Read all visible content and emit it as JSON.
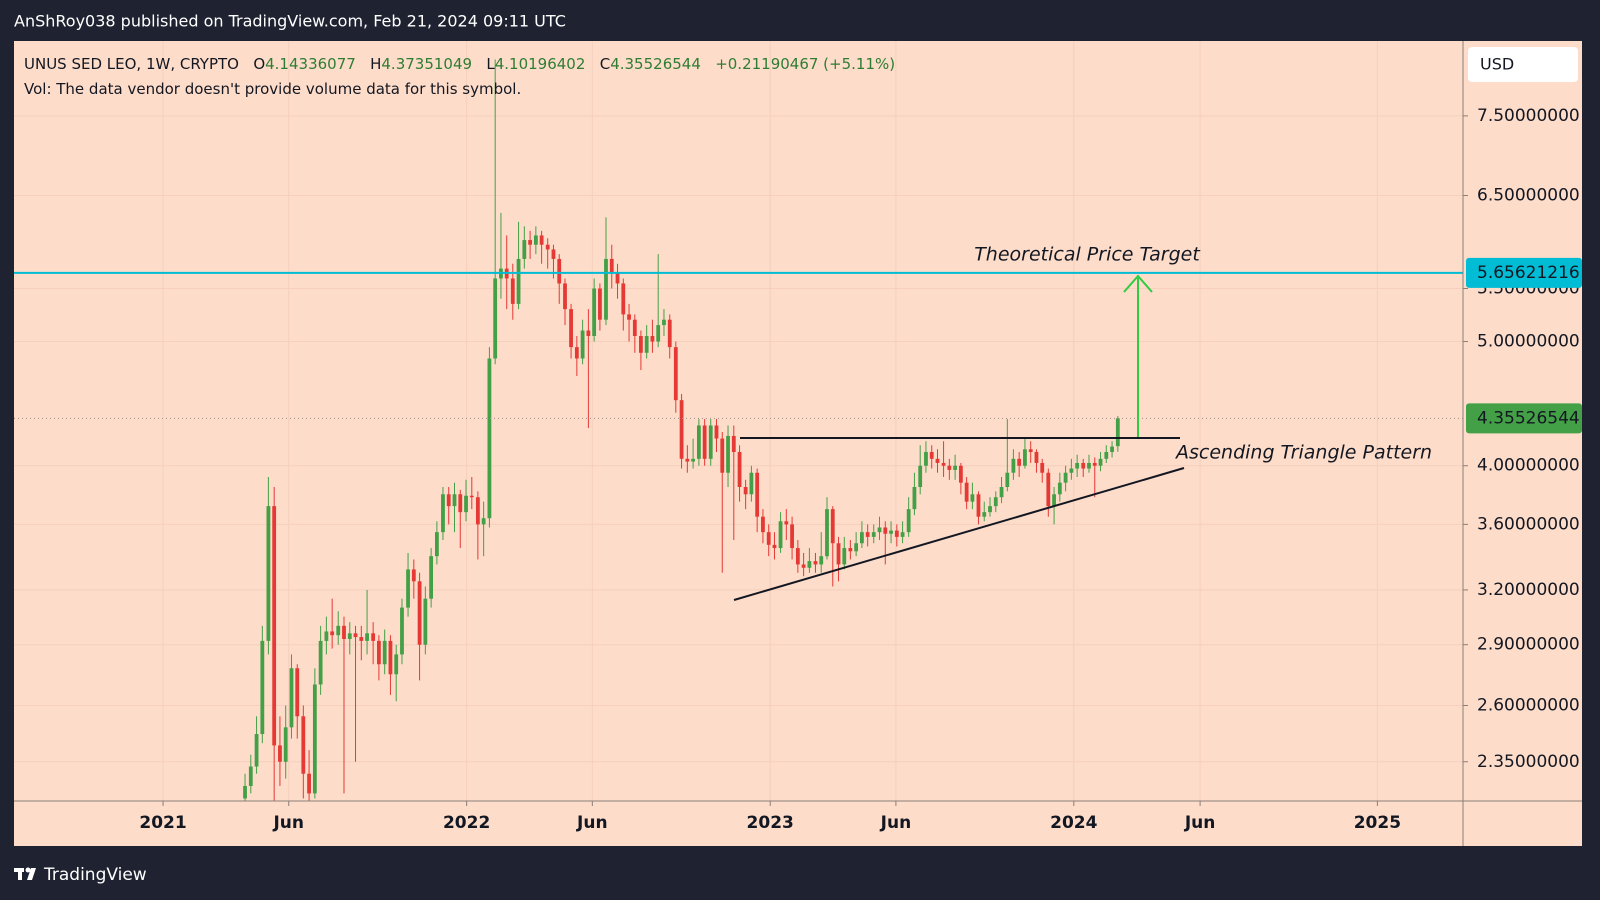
{
  "header": {
    "title": "AnShRoy038 published on TradingView.com, Feb 21, 2024 09:11 UTC"
  },
  "footer": {
    "brand": "TradingView"
  },
  "legend": {
    "symbol": "UNUS SED LEO, 1W, CRYPTO",
    "open_label": "O",
    "open": 4.14336077,
    "high_label": "H",
    "high": 4.37351049,
    "low_label": "L",
    "low": 4.10196402,
    "close_label": "C",
    "close": 4.35526544,
    "change": "+0.21190467 (+5.11%)",
    "volume_note": "Vol: The data vendor doesn't provide volume data for this symbol."
  },
  "chart_data": {
    "type": "candlestick",
    "currency": "USD",
    "up_color": "#43a047",
    "down_color": "#e53935",
    "log_scale": true,
    "grid": true,
    "xlim": [
      2020.509,
      2025.282
    ],
    "ylim": [
      2.19,
      8.58
    ],
    "xticks": [
      {
        "value": 2021,
        "label": "2021"
      },
      {
        "value": 2021.414,
        "label": "Jun"
      },
      {
        "value": 2022,
        "label": "2022"
      },
      {
        "value": 2022.414,
        "label": "Jun"
      },
      {
        "value": 2023,
        "label": "2023"
      },
      {
        "value": 2023.414,
        "label": "Jun"
      },
      {
        "value": 2024,
        "label": "2024"
      },
      {
        "value": 2024.416,
        "label": "Jun"
      },
      {
        "value": 2025,
        "label": "2025"
      }
    ],
    "yticks": [
      {
        "value": 2.35,
        "label": "2.35000000"
      },
      {
        "value": 2.6,
        "label": "2.60000000"
      },
      {
        "value": 2.9,
        "label": "2.90000000"
      },
      {
        "value": 3.2,
        "label": "3.20000000"
      },
      {
        "value": 3.6,
        "label": "3.60000000"
      },
      {
        "value": 4.0,
        "label": "4.00000000"
      },
      {
        "value": 5.0,
        "label": "5.00000000"
      },
      {
        "value": 5.5,
        "label": "5.50000000"
      },
      {
        "value": 6.5,
        "label": "6.50000000"
      },
      {
        "value": 7.5,
        "label": "7.50000000"
      }
    ],
    "price_line": {
      "value": 5.65621216,
      "color": "#00bcd4"
    },
    "annotations": [
      "Theoretical Price Target",
      "Ascending Triangle Pattern"
    ],
    "x": [
      2021.27,
      2021.289,
      2021.308,
      2021.327,
      2021.347,
      2021.366,
      2021.385,
      2021.404,
      2021.423,
      2021.442,
      2021.462,
      2021.481,
      2021.5,
      2021.519,
      2021.538,
      2021.557,
      2021.577,
      2021.596,
      2021.615,
      2021.634,
      2021.653,
      2021.672,
      2021.692,
      2021.711,
      2021.73,
      2021.749,
      2021.768,
      2021.787,
      2021.807,
      2021.826,
      2021.845,
      2021.864,
      2021.883,
      2021.902,
      2021.922,
      2021.941,
      2021.96,
      2021.979,
      2021.998,
      2022.017,
      2022.037,
      2022.056,
      2022.075,
      2022.094,
      2022.113,
      2022.132,
      2022.152,
      2022.171,
      2022.19,
      2022.209,
      2022.228,
      2022.247,
      2022.267,
      2022.286,
      2022.305,
      2022.324,
      2022.344,
      2022.363,
      2022.382,
      2022.401,
      2022.42,
      2022.439,
      2022.459,
      2022.478,
      2022.497,
      2022.516,
      2022.535,
      2022.554,
      2022.574,
      2022.593,
      2022.612,
      2022.631,
      2022.65,
      2022.669,
      2022.689,
      2022.708,
      2022.727,
      2022.746,
      2022.765,
      2022.784,
      2022.804,
      2022.823,
      2022.842,
      2022.861,
      2022.88,
      2022.899,
      2022.919,
      2022.938,
      2022.957,
      2022.976,
      2022.995,
      2023.014,
      2023.034,
      2023.053,
      2023.072,
      2023.091,
      2023.11,
      2023.129,
      2023.149,
      2023.168,
      2023.187,
      2023.206,
      2023.225,
      2023.244,
      2023.264,
      2023.283,
      2023.302,
      2023.321,
      2023.341,
      2023.36,
      2023.379,
      2023.398,
      2023.417,
      2023.436,
      2023.456,
      2023.475,
      2023.494,
      2023.513,
      2023.532,
      2023.551,
      2023.571,
      2023.59,
      2023.609,
      2023.628,
      2023.647,
      2023.666,
      2023.686,
      2023.705,
      2023.724,
      2023.743,
      2023.762,
      2023.781,
      2023.801,
      2023.82,
      2023.839,
      2023.858,
      2023.877,
      2023.896,
      2023.916,
      2023.935,
      2023.954,
      2023.973,
      2023.992,
      2024.011,
      2024.031,
      2024.05,
      2024.069,
      2024.088,
      2024.107,
      2024.126,
      2024.145
    ],
    "open": [
      2.2,
      2.25,
      2.33,
      2.47,
      2.92,
      3.72,
      2.42,
      2.35,
      2.5,
      2.78,
      2.55,
      2.3,
      2.22,
      2.7,
      2.92,
      2.97,
      2.95,
      3.0,
      2.93,
      2.96,
      2.94,
      2.92,
      2.96,
      2.92,
      2.8,
      2.92,
      2.75,
      2.85,
      3.1,
      3.32,
      3.25,
      2.9,
      3.15,
      3.4,
      3.55,
      3.8,
      3.72,
      3.8,
      3.68,
      3.79,
      3.78,
      3.6,
      3.64,
      4.85,
      5.6,
      5.7,
      5.6,
      5.35,
      5.8,
      6.0,
      5.95,
      6.05,
      5.95,
      5.9,
      5.8,
      5.55,
      5.3,
      4.95,
      4.85,
      5.1,
      5.05,
      5.5,
      5.2,
      5.8,
      5.65,
      5.55,
      5.25,
      5.2,
      5.05,
      4.9,
      5.05,
      5.0,
      5.15,
      5.2,
      4.95,
      4.5,
      4.05,
      4.03,
      4.05,
      4.3,
      4.05,
      4.3,
      4.2,
      3.95,
      4.22,
      4.1,
      3.85,
      3.8,
      3.95,
      3.65,
      3.55,
      3.47,
      3.45,
      3.62,
      3.6,
      3.45,
      3.35,
      3.33,
      3.37,
      3.35,
      3.4,
      3.7,
      3.48,
      3.35,
      3.45,
      3.43,
      3.48,
      3.55,
      3.52,
      3.55,
      3.58,
      3.54,
      3.56,
      3.52,
      3.55,
      3.7,
      3.85,
      4.0,
      4.1,
      4.05,
      4.02,
      4.0,
      3.97,
      4.0,
      3.88,
      3.75,
      3.8,
      3.65,
      3.68,
      3.72,
      3.78,
      3.85,
      3.95,
      4.05,
      4.0,
      4.12,
      4.1,
      4.02,
      3.95,
      3.72,
      3.8,
      3.88,
      3.95,
      3.98,
      4.02,
      3.98,
      4.02,
      4.0,
      4.05,
      4.1,
      4.14336077
    ],
    "high": [
      2.3,
      2.38,
      2.55,
      3.0,
      3.92,
      3.85,
      2.55,
      2.6,
      2.85,
      2.8,
      2.6,
      2.4,
      2.78,
      3.0,
      3.05,
      3.15,
      3.08,
      3.05,
      3.02,
      3.0,
      3.0,
      3.2,
      3.02,
      2.95,
      2.98,
      2.95,
      2.9,
      3.15,
      3.42,
      3.38,
      3.3,
      3.22,
      3.45,
      3.62,
      3.85,
      3.85,
      3.88,
      3.83,
      3.9,
      3.92,
      3.82,
      3.75,
      4.95,
      8.3,
      6.3,
      6.05,
      5.75,
      6.2,
      6.15,
      6.1,
      6.15,
      6.1,
      6.02,
      5.95,
      5.85,
      5.6,
      5.35,
      5.05,
      5.2,
      5.3,
      5.6,
      5.55,
      6.25,
      5.95,
      5.75,
      5.6,
      5.35,
      5.25,
      5.1,
      5.15,
      5.2,
      5.85,
      5.3,
      5.25,
      5.0,
      4.55,
      4.15,
      4.2,
      4.35,
      4.35,
      4.35,
      4.35,
      4.25,
      4.3,
      4.3,
      4.15,
      3.9,
      4.0,
      3.98,
      3.7,
      3.6,
      3.55,
      3.68,
      3.7,
      3.65,
      3.5,
      3.42,
      3.45,
      3.42,
      3.55,
      3.78,
      3.72,
      3.52,
      3.52,
      3.5,
      3.55,
      3.62,
      3.6,
      3.6,
      3.65,
      3.62,
      3.62,
      3.6,
      3.62,
      3.78,
      3.95,
      4.15,
      4.18,
      4.15,
      4.12,
      4.18,
      4.05,
      4.08,
      4.02,
      3.92,
      3.88,
      3.82,
      3.75,
      3.78,
      3.82,
      3.92,
      4.35,
      4.12,
      4.1,
      4.2,
      4.18,
      4.12,
      4.05,
      3.98,
      3.85,
      3.95,
      4.0,
      4.05,
      4.08,
      4.05,
      4.08,
      4.06,
      4.1,
      4.15,
      4.18,
      4.37351049
    ],
    "low": [
      2.16,
      2.22,
      2.3,
      2.43,
      2.85,
      2.18,
      2.25,
      2.28,
      2.45,
      2.45,
      2.2,
      2.1,
      2.2,
      2.65,
      2.85,
      2.88,
      2.9,
      2.22,
      2.85,
      2.35,
      2.82,
      2.85,
      2.8,
      2.72,
      2.75,
      2.65,
      2.62,
      2.8,
      3.05,
      3.15,
      2.72,
      2.85,
      3.1,
      3.35,
      3.5,
      3.6,
      3.55,
      3.45,
      3.62,
      3.7,
      3.38,
      3.4,
      3.58,
      4.8,
      5.4,
      5.3,
      5.2,
      5.3,
      5.7,
      5.8,
      5.85,
      5.75,
      5.7,
      5.6,
      5.35,
      5.15,
      4.85,
      4.7,
      4.8,
      4.28,
      5.0,
      5.1,
      5.15,
      5.5,
      5.4,
      5.1,
      5.0,
      4.9,
      4.75,
      4.85,
      4.9,
      4.95,
      5.05,
      4.85,
      4.4,
      3.98,
      3.95,
      3.98,
      4.0,
      4.0,
      4.0,
      4.1,
      3.3,
      3.85,
      3.5,
      3.75,
      3.7,
      3.75,
      3.55,
      3.48,
      3.4,
      3.38,
      3.42,
      3.5,
      3.38,
      3.3,
      3.28,
      3.3,
      3.3,
      3.3,
      3.38,
      3.22,
      3.25,
      3.32,
      3.38,
      3.4,
      3.45,
      3.46,
      3.48,
      3.5,
      3.35,
      3.48,
      3.46,
      3.48,
      3.52,
      3.66,
      3.8,
      3.95,
      3.98,
      3.95,
      3.92,
      3.9,
      3.9,
      3.8,
      3.7,
      3.7,
      3.6,
      3.62,
      3.65,
      3.68,
      3.74,
      3.82,
      3.9,
      3.92,
      3.98,
      4.02,
      3.95,
      3.88,
      3.65,
      3.6,
      3.75,
      3.82,
      3.9,
      3.92,
      3.92,
      3.95,
      3.78,
      3.96,
      4.02,
      4.06,
      4.10196402
    ],
    "close": [
      2.25,
      2.33,
      2.47,
      2.92,
      3.72,
      2.42,
      2.35,
      2.5,
      2.78,
      2.55,
      2.3,
      2.22,
      2.7,
      2.92,
      2.97,
      2.95,
      3.0,
      2.93,
      2.96,
      2.94,
      2.92,
      2.96,
      2.92,
      2.8,
      2.92,
      2.75,
      2.85,
      3.1,
      3.32,
      3.25,
      2.9,
      3.15,
      3.4,
      3.55,
      3.8,
      3.72,
      3.8,
      3.68,
      3.79,
      3.78,
      3.6,
      3.64,
      4.85,
      5.6,
      5.7,
      5.6,
      5.35,
      5.8,
      6.0,
      5.95,
      6.05,
      5.95,
      5.9,
      5.8,
      5.55,
      5.3,
      4.95,
      4.85,
      5.1,
      5.05,
      5.5,
      5.2,
      5.8,
      5.65,
      5.55,
      5.25,
      5.2,
      5.05,
      4.9,
      5.05,
      5.0,
      5.15,
      5.2,
      4.95,
      4.5,
      4.05,
      4.03,
      4.05,
      4.3,
      4.05,
      4.3,
      4.2,
      3.95,
      4.22,
      4.1,
      3.85,
      3.8,
      3.95,
      3.65,
      3.55,
      3.47,
      3.45,
      3.62,
      3.6,
      3.45,
      3.35,
      3.33,
      3.37,
      3.35,
      3.4,
      3.7,
      3.48,
      3.35,
      3.45,
      3.43,
      3.48,
      3.55,
      3.52,
      3.55,
      3.58,
      3.54,
      3.56,
      3.52,
      3.55,
      3.7,
      3.85,
      4.0,
      4.1,
      4.05,
      4.02,
      4.0,
      3.97,
      4.0,
      3.88,
      3.75,
      3.8,
      3.65,
      3.68,
      3.72,
      3.78,
      3.85,
      3.95,
      4.05,
      4.0,
      4.12,
      4.1,
      4.02,
      3.95,
      3.72,
      3.8,
      3.88,
      3.95,
      3.98,
      4.02,
      3.98,
      4.02,
      4.0,
      4.05,
      4.1,
      4.14,
      4.35526544
    ]
  }
}
